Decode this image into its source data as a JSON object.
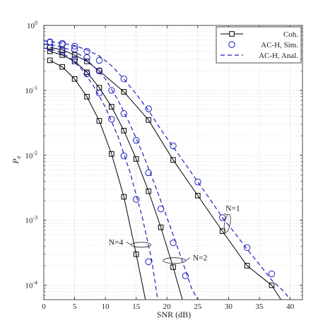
{
  "chart_data": {
    "type": "line",
    "title": "",
    "xlabel": "SNR (dB)",
    "ylabel": "P",
    "ylabel_sub": "e",
    "xlim": [
      0,
      42
    ],
    "ylim": [
      6e-05,
      1
    ],
    "yscale": "log",
    "grid": true,
    "legend_position": "top-right",
    "x_ticks": [
      0,
      5,
      10,
      15,
      20,
      25,
      30,
      35,
      40
    ],
    "x_tick_labels": [
      "0",
      "5",
      "10",
      "15",
      "20",
      "25",
      "30",
      "35",
      "40"
    ],
    "y_ticks": [
      1,
      0.1,
      0.01,
      0.001,
      0.0001
    ],
    "y_tick_bases": [
      "10",
      "10",
      "10",
      "10",
      "10"
    ],
    "y_tick_exps": [
      "0",
      "-1",
      "-2",
      "-3",
      "-4"
    ],
    "legend": [
      {
        "label": "Coh.",
        "style": "black-solid-square"
      },
      {
        "label": "AC-H, Sim.",
        "style": "blue-circle"
      },
      {
        "label": "AC-H, Anal.",
        "style": "blue-dashed"
      }
    ],
    "series": [
      {
        "group": "N=1",
        "kind": "coherent",
        "color": "#000000",
        "x": [
          1,
          3,
          5,
          7,
          9,
          13,
          17,
          21,
          25,
          29,
          33,
          37,
          38.5
        ],
        "y": [
          0.46,
          0.42,
          0.35,
          0.28,
          0.2,
          0.095,
          0.035,
          0.0085,
          0.0024,
          0.00068,
          0.0002,
          0.0001,
          6e-05
        ]
      },
      {
        "group": "N=1",
        "kind": "sim",
        "color": "#1f1fbf",
        "x": [
          1,
          3,
          5,
          7,
          9,
          13,
          17,
          21,
          25,
          29,
          33,
          37
        ],
        "y": [
          0.56,
          0.53,
          0.48,
          0.4,
          0.29,
          0.15,
          0.052,
          0.014,
          0.0039,
          0.0011,
          0.00038,
          0.00015
        ]
      },
      {
        "group": "N=1",
        "kind": "anal",
        "color": "#1f1fbf",
        "x": [
          0,
          3,
          5,
          7,
          9,
          11,
          13,
          15,
          17,
          19,
          21,
          23,
          25,
          27,
          29,
          31,
          33,
          35,
          37,
          39,
          40
        ],
        "y": [
          0.58,
          0.53,
          0.49,
          0.42,
          0.34,
          0.24,
          0.15,
          0.088,
          0.049,
          0.025,
          0.0135,
          0.0073,
          0.0039,
          0.0021,
          0.0011,
          0.00064,
          0.00036,
          0.00021,
          0.00012,
          8e-05,
          6e-05
        ]
      },
      {
        "group": "N=2",
        "kind": "coherent",
        "color": "#000000",
        "x": [
          1,
          3,
          5,
          7,
          9,
          11,
          13,
          15,
          17,
          19,
          21,
          22.5
        ],
        "y": [
          0.4,
          0.35,
          0.28,
          0.19,
          0.11,
          0.056,
          0.024,
          0.0088,
          0.0028,
          0.00078,
          0.00019,
          6e-05
        ]
      },
      {
        "group": "N=2",
        "kind": "sim",
        "color": "#1f1fbf",
        "x": [
          1,
          3,
          5,
          7,
          9,
          11,
          13,
          15,
          17,
          19,
          21,
          23
        ],
        "y": [
          0.55,
          0.51,
          0.43,
          0.32,
          0.2,
          0.1,
          0.044,
          0.017,
          0.0054,
          0.0015,
          0.00045,
          0.00014
        ]
      },
      {
        "group": "N=2",
        "kind": "anal",
        "color": "#1f1fbf",
        "x": [
          0,
          2,
          4,
          6,
          8,
          10,
          12,
          14,
          16,
          18,
          20,
          22,
          24,
          25
        ],
        "y": [
          0.52,
          0.49,
          0.43,
          0.35,
          0.24,
          0.15,
          0.072,
          0.03,
          0.011,
          0.0036,
          0.0011,
          0.00032,
          9e-05,
          6e-05
        ]
      },
      {
        "group": "N=4",
        "kind": "coherent",
        "color": "#000000",
        "x": [
          1,
          3,
          5,
          7,
          9,
          11,
          13,
          15,
          16.5
        ],
        "y": [
          0.29,
          0.23,
          0.15,
          0.08,
          0.034,
          0.0105,
          0.0023,
          0.0003,
          6e-05
        ]
      },
      {
        "group": "N=4",
        "kind": "sim",
        "color": "#1f1fbf",
        "x": [
          1,
          3,
          5,
          7,
          9,
          11,
          13,
          15,
          17
        ],
        "y": [
          0.45,
          0.4,
          0.3,
          0.18,
          0.091,
          0.036,
          0.0098,
          0.0021,
          0.00023
        ]
      },
      {
        "group": "N=4",
        "kind": "anal",
        "color": "#1f1fbf",
        "x": [
          0,
          2,
          4,
          6,
          8,
          10,
          12,
          14,
          16,
          17.5,
          18.5
        ],
        "y": [
          0.45,
          0.41,
          0.33,
          0.22,
          0.12,
          0.055,
          0.02,
          0.0055,
          0.0011,
          0.00025,
          6e-05
        ]
      }
    ],
    "annotations": [
      {
        "text": "N=1",
        "x": 29.5,
        "y": 0.0014,
        "anchor_x": 29.8,
        "anchor_y": 0.0009
      },
      {
        "text": "N=2",
        "x": 24.2,
        "y": 0.00024,
        "anchor_x": 21.2,
        "anchor_y": 0.00024
      },
      {
        "text": "N=4",
        "x": 12.9,
        "y": 0.00042,
        "anchor_x": 15.8,
        "anchor_y": 0.00042
      }
    ]
  }
}
